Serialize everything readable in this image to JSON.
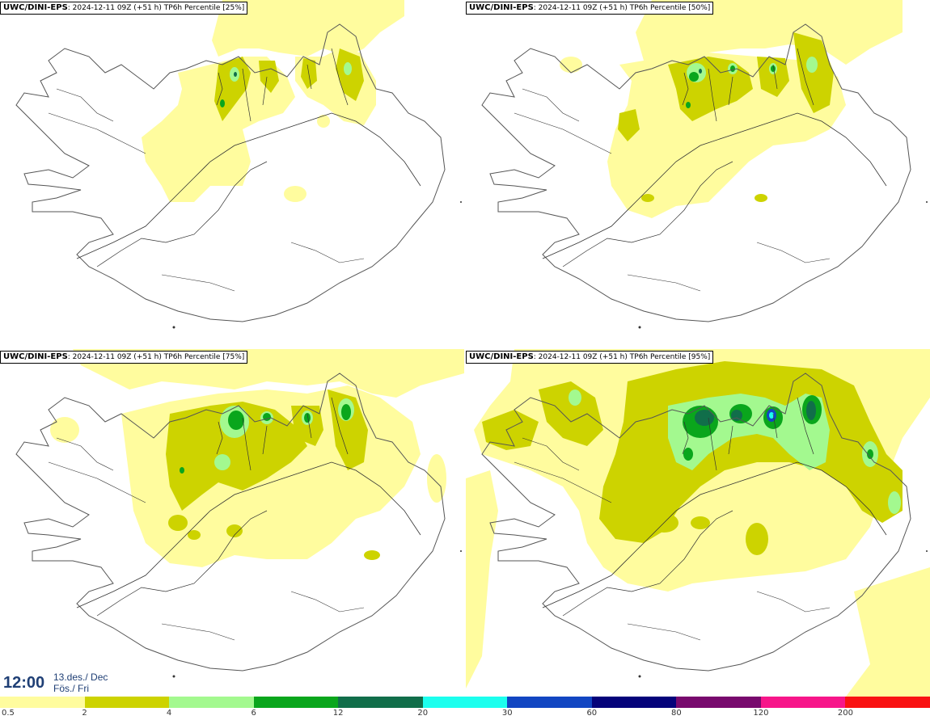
{
  "panels": [
    {
      "model": "UWC/DINI-EPS",
      "run": ": 2024-12-11 09Z (+51 h)",
      "title": "TP6h Percentile [25%]"
    },
    {
      "model": "UWC/DINI-EPS",
      "run": ": 2024-12-11 09Z (+51 h)",
      "title": "TP6h Percentile [50%]"
    },
    {
      "model": "UWC/DINI-EPS",
      "run": ": 2024-12-11 09Z (+51 h)",
      "title": "TP6h Percentile [75%]"
    },
    {
      "model": "UWC/DINI-EPS",
      "run": ": 2024-12-11 09Z (+51 h)",
      "title": "TP6h Percentile [95%]"
    }
  ],
  "valid_time": {
    "time": "12:00",
    "date": "13.des./ Dec",
    "day": "Fös./ Fri"
  },
  "legend": {
    "ticks": [
      "0.5",
      "2",
      "4",
      "6",
      "12",
      "20",
      "30",
      "60",
      "80",
      "120",
      "200"
    ],
    "colors": [
      "#fffc9e",
      "#cdd300",
      "#a3f98f",
      "#0aa61c",
      "#116e4a",
      "#1cffee",
      "#1246c2",
      "#05037a",
      "#780a6e",
      "#f7168a",
      "#f91212"
    ]
  },
  "map_colors": {
    "lvl1": "#fffc9e",
    "lvl2": "#cdd300",
    "lvl3": "#a3f98f",
    "lvl4": "#0aa61c",
    "lvl5": "#116e4a",
    "lvl6": "#1246c2",
    "lvl7": "#1cffee",
    "coast": "#555555",
    "roads": "#333333"
  }
}
